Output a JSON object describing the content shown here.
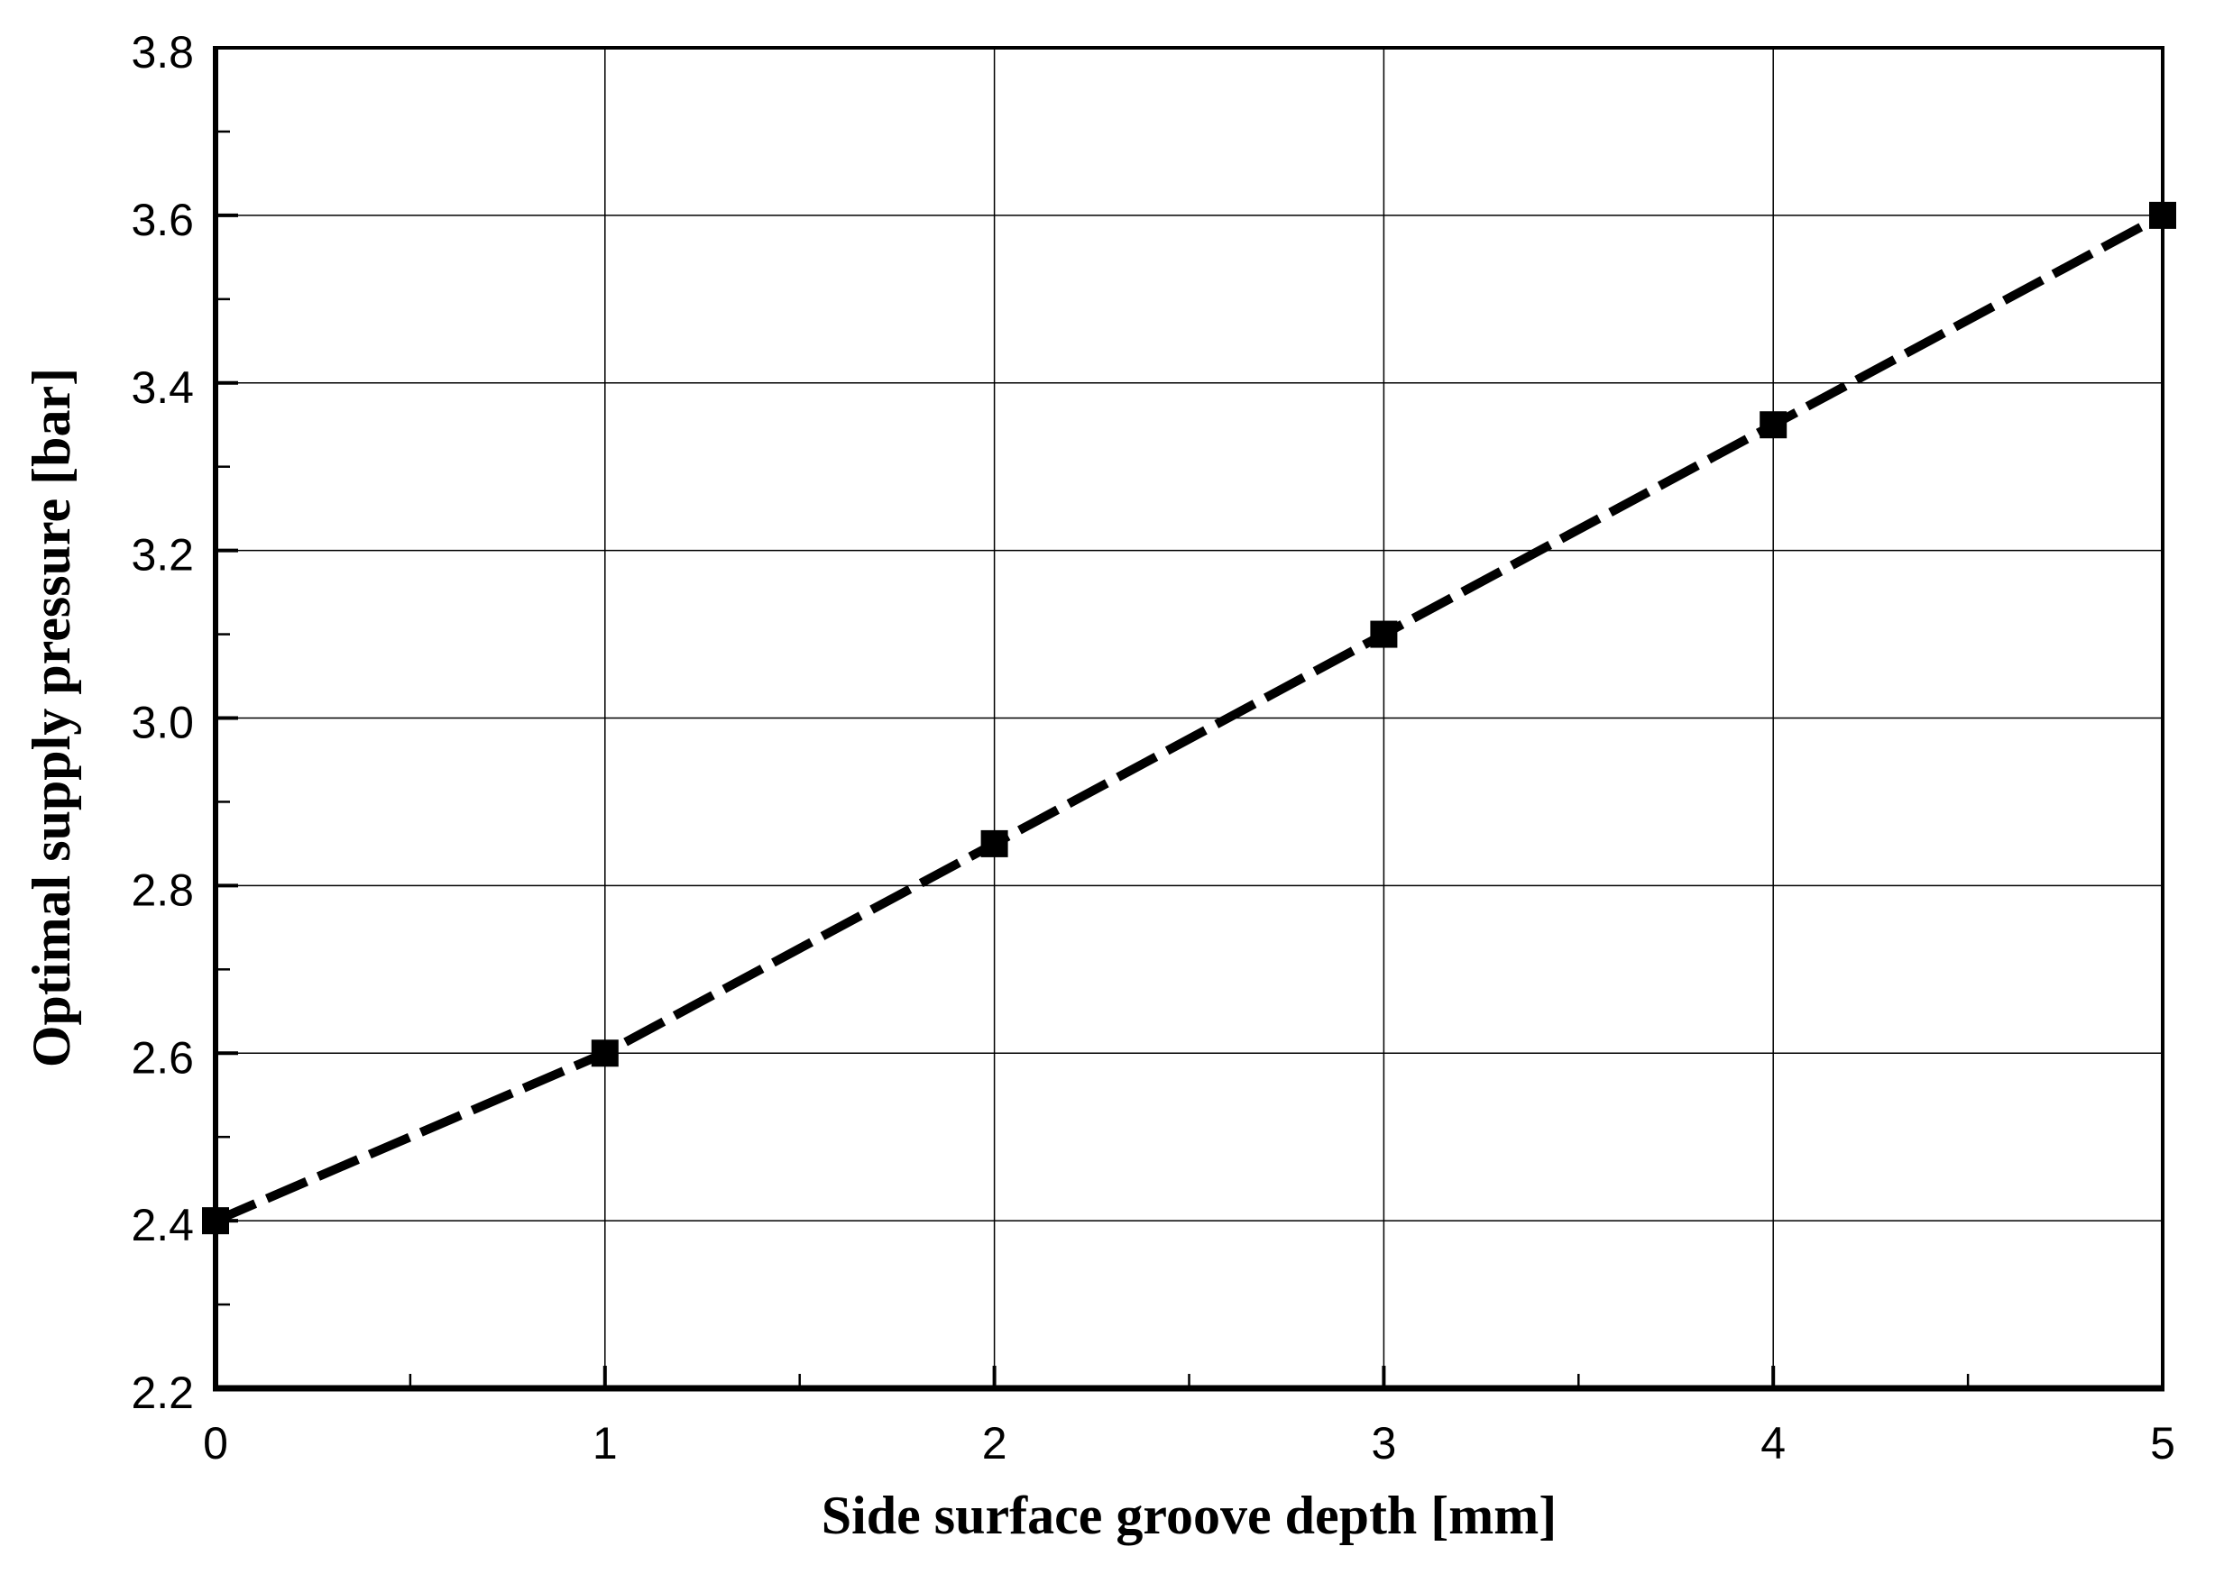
{
  "chart_data": {
    "type": "line",
    "title": "",
    "xlabel": "Side surface groove depth [mm]",
    "ylabel": "Optimal supply pressure [bar]",
    "x": [
      0,
      1,
      2,
      3,
      4,
      5
    ],
    "series": [
      {
        "name": "Optimal supply pressure",
        "values": [
          2.4,
          2.6,
          2.85,
          3.1,
          3.35,
          3.6
        ]
      }
    ],
    "xlim": [
      0,
      5
    ],
    "ylim": [
      2.2,
      3.8
    ],
    "x_major_ticks": [
      0,
      1,
      2,
      3,
      4,
      5
    ],
    "x_tick_labels": [
      "0",
      "1",
      "2",
      "3",
      "4",
      "5"
    ],
    "x_minor_step": 0.5,
    "y_major_ticks": [
      2.2,
      2.4,
      2.6,
      2.8,
      3.0,
      3.2,
      3.4,
      3.6,
      3.8
    ],
    "y_tick_labels": [
      "2.2",
      "2.4",
      "2.6",
      "2.8",
      "3.0",
      "3.2",
      "3.4",
      "3.6",
      "3.8"
    ],
    "y_minor_step": 0.1,
    "grid": "major-both",
    "legend": "none",
    "line_style": "dashed",
    "marker": "filled-square",
    "colors": {
      "line": "#000000",
      "marker": "#000000",
      "grid": "#000000",
      "frame": "#000000",
      "text": "#000000",
      "background": "#ffffff"
    }
  }
}
